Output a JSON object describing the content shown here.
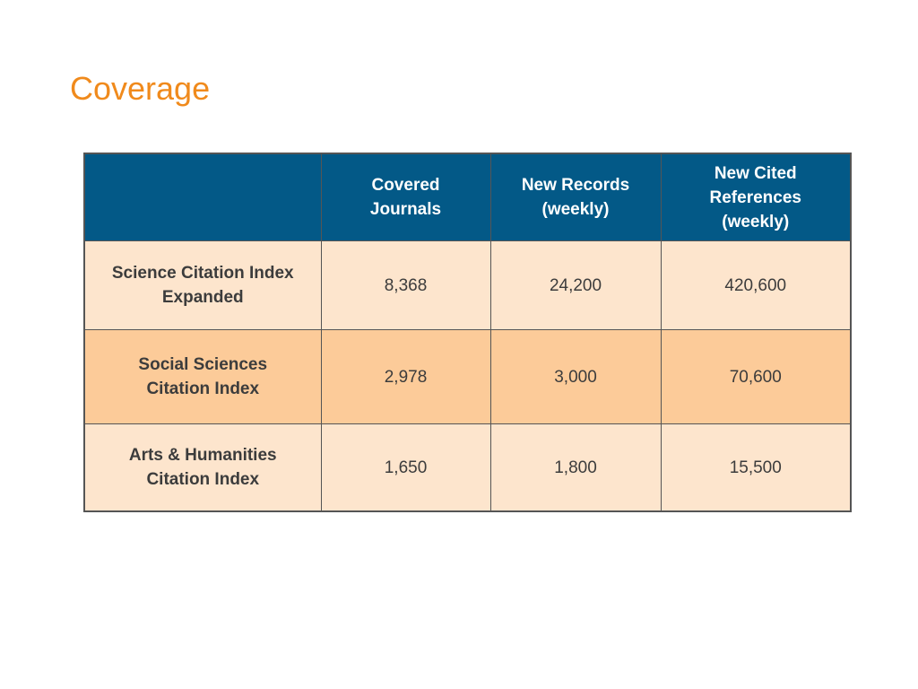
{
  "title": "Coverage",
  "colors": {
    "title": "#f08a1c",
    "header_bg": "#035987",
    "row_light": "#fde5cd",
    "row_dark": "#fccb99",
    "border": "#555555"
  },
  "table": {
    "headers": [
      "",
      "Covered\nJournals",
      "New Records\n(weekly)",
      "New Cited\nReferences\n(weekly)"
    ],
    "rows": [
      {
        "label": "Science Citation Index\nExpanded",
        "covered_journals": "8,368",
        "new_records_weekly": "24,200",
        "new_cited_references_weekly": "420,600"
      },
      {
        "label": "Social Sciences\nCitation Index",
        "covered_journals": "2,978",
        "new_records_weekly": "3,000",
        "new_cited_references_weekly": "70,600"
      },
      {
        "label": "Arts & Humanities\nCitation Index",
        "covered_journals": "1,650",
        "new_records_weekly": "1,800",
        "new_cited_references_weekly": "15,500"
      }
    ]
  }
}
